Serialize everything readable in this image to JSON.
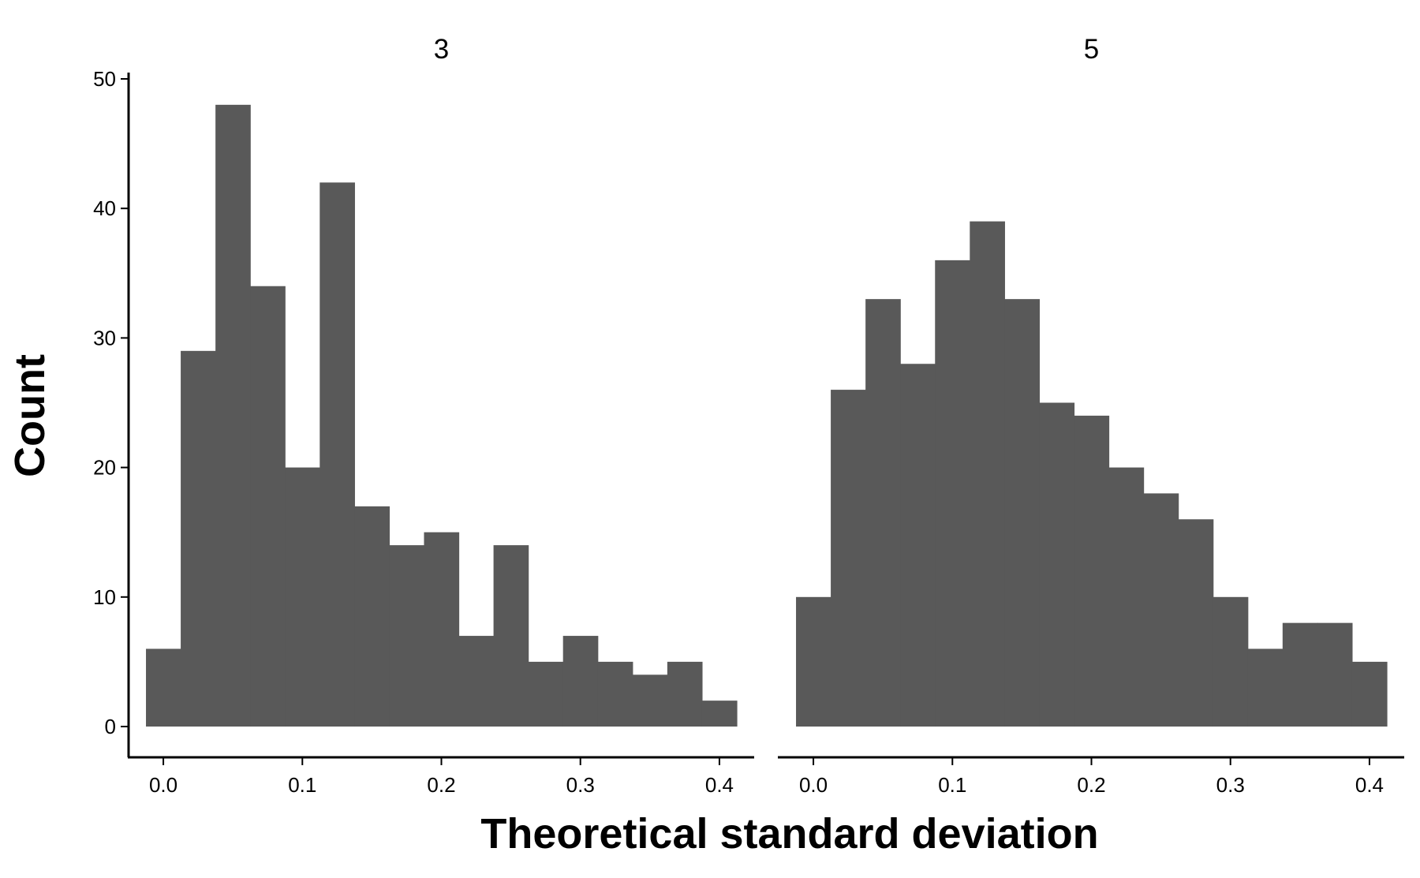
{
  "chart_data": {
    "type": "bar",
    "xlabel": "Theoretical standard deviation",
    "ylabel": "Count",
    "ylim": [
      0,
      50
    ],
    "xlim": [
      -0.025,
      0.425
    ],
    "grid": false,
    "bar_color": "#595959",
    "x_ticks": [
      "0.0",
      "0.1",
      "0.2",
      "0.3",
      "0.4"
    ],
    "y_ticks": [
      "0",
      "10",
      "20",
      "30",
      "40",
      "50"
    ],
    "bin_width": 0.025,
    "facets": [
      {
        "name": "3",
        "bin_centers": [
          0.0,
          0.025,
          0.05,
          0.075,
          0.1,
          0.125,
          0.15,
          0.175,
          0.2,
          0.225,
          0.25,
          0.275,
          0.3,
          0.325,
          0.35,
          0.375,
          0.4
        ],
        "counts": [
          6,
          29,
          48,
          34,
          20,
          42,
          17,
          14,
          15,
          7,
          14,
          5,
          7,
          5,
          4,
          5,
          2
        ]
      },
      {
        "name": "5",
        "bin_centers": [
          0.0,
          0.025,
          0.05,
          0.075,
          0.1,
          0.125,
          0.15,
          0.175,
          0.2,
          0.225,
          0.25,
          0.275,
          0.3,
          0.325,
          0.35,
          0.375,
          0.4
        ],
        "counts": [
          10,
          26,
          33,
          28,
          36,
          39,
          33,
          25,
          24,
          20,
          18,
          16,
          10,
          6,
          8,
          8,
          5
        ]
      }
    ]
  }
}
